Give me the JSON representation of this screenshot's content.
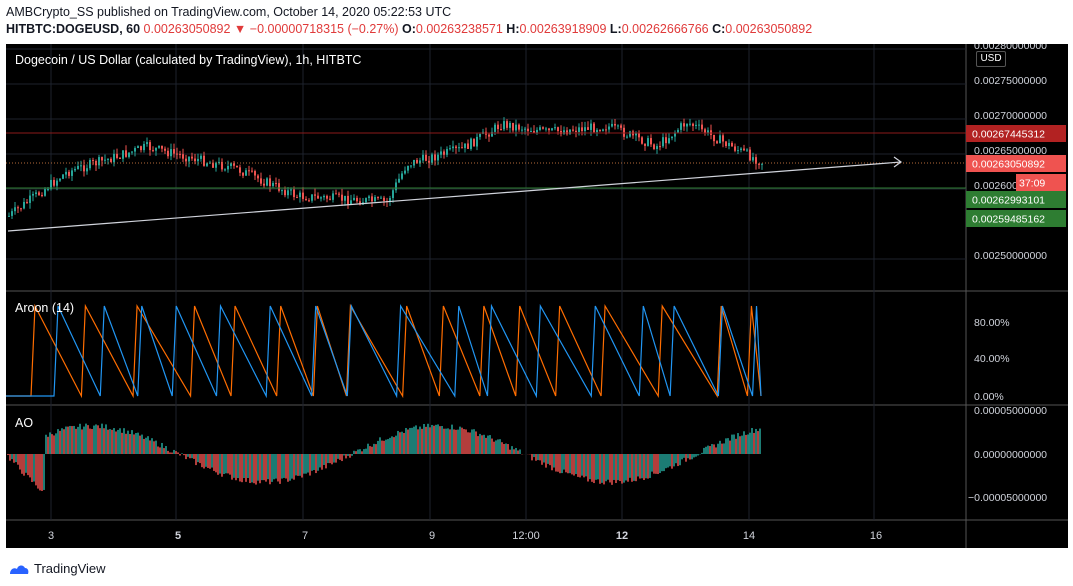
{
  "header": {
    "line1": "AMBCrypto_SS published on TradingView.com, October 14, 2020 05:22:53 UTC",
    "symbol": "HITBTC:DOGEUSD, 60",
    "last": "0.00263050892",
    "change": "−0.00000718315 (−0.27%)",
    "o_label": "O:",
    "o_value": "0.00263238571",
    "h_label": "H:",
    "h_value": "0.00263918909",
    "l_label": "L:",
    "l_value": "0.00262666766",
    "c_label": "C:",
    "c_value": "0.00263050892"
  },
  "main_pane": {
    "title": "Dogecoin / US Dollar (calculated by TradingView), 1h, HITBTC",
    "currency_button": "USD",
    "axis_labels": [
      "0.00280000000",
      "0.00275000000",
      "0.00270000000",
      "0.00265000000",
      "0.00260000000",
      "0.00250000000"
    ],
    "badges": [
      {
        "text": "0.00267445312",
        "color": "#b22222"
      },
      {
        "text": "0.00263050892",
        "color": "#ef5350"
      },
      {
        "text": "37:09",
        "color": "#ef5350"
      },
      {
        "text": "0.00262993101",
        "color": "#2e7d32"
      },
      {
        "text": "0.00259485162",
        "color": "#2e7d32"
      }
    ]
  },
  "aroon_pane": {
    "title": "Aroon (14)",
    "axis_labels": [
      "80.00%",
      "40.00%",
      "0.00%"
    ]
  },
  "ao_pane": {
    "title": "AO",
    "axis_labels": [
      "0.00005000000",
      "0.00000000000",
      "−0.00005000000"
    ]
  },
  "time_axis": [
    "3",
    "5",
    "7",
    "9",
    "12:00",
    "12",
    "14",
    "16"
  ],
  "colors": {
    "up": "#26a69a",
    "down": "#ef5350",
    "aroon_up": "#ff6d00",
    "aroon_down": "#2196f3",
    "ao_up": "#26a69a",
    "ao_down": "#ef5350"
  },
  "footer": {
    "brand": "TradingView"
  }
}
